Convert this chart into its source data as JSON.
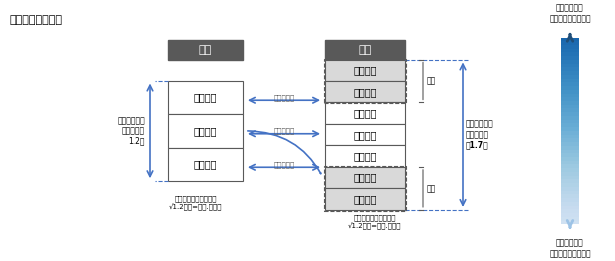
{
  "title": "【改定イメージ】",
  "current_label": "現行",
  "revised_label": "改定",
  "current_classes": [
    "クラス３",
    "クラス２",
    "クラス１"
  ],
  "revised_classes": [
    "クラス７",
    "クラス６",
    "クラス５",
    "クラス４",
    "クラス３",
    "クラス２",
    "クラス１"
  ],
  "dotted_classes_revised": [
    0,
    1,
    5,
    6
  ],
  "bold_classes_revised": [
    0,
    1,
    5,
    6
  ],
  "same_premium_labels": [
    "同じ保険料",
    "同じ保険料",
    "同じ保険料"
  ],
  "added_top_label": "追加",
  "added_bottom_label": "追加",
  "current_ratio_label": "最大と最小の\n料率較差は\n1.2倍",
  "revised_ratio_label": "最大と最小の\n料率較差は\n約1.7倍",
  "current_between_label": "クラス間の料率較差は\n√1.2倍（=約１.１倍）",
  "revised_between_label": "クラス間の料率較差は\n√1.2倍（=約１.１倍）",
  "risk_high_label": "リスクが高い\n（＝保険料が高い）",
  "risk_low_label": "リスクが低い\n（＝保険料が安い）",
  "header_bg": "#595959",
  "header_fg": "#ffffff",
  "dotted_bg": "#e8e8e8",
  "normal_bg": "#ffffff",
  "box_border": "#595959",
  "arrow_color": "#4472c4",
  "text_color": "#000000",
  "small_fontsize": 5.5,
  "medium_fontsize": 7,
  "label_fontsize": 8
}
